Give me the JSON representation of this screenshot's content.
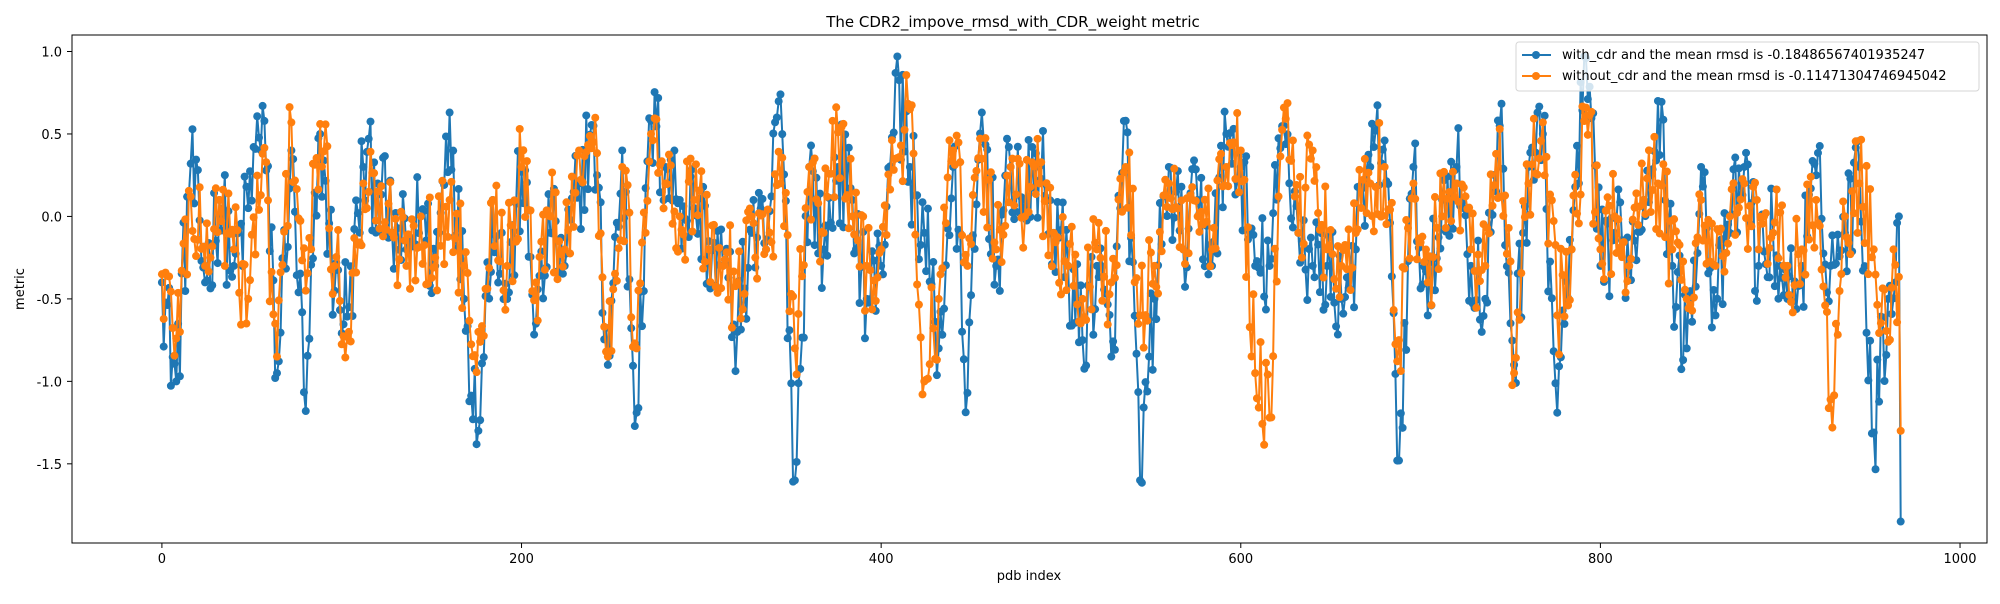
{
  "chart_data": {
    "type": "line",
    "title": "The CDR2_impove_rmsd_with_CDR_weight metric",
    "xlabel": "pdb index",
    "ylabel": "metric",
    "xlim": [
      -50,
      1015
    ],
    "ylim": [
      -1.98,
      1.1
    ],
    "x_ticks": [
      0,
      200,
      400,
      600,
      800,
      1000
    ],
    "y_ticks": [
      -1.5,
      -1.0,
      -0.5,
      0.0,
      0.5,
      1.0
    ],
    "y_tick_labels": [
      "-1.5",
      "-1.0",
      "-0.5",
      "0.0",
      "0.5",
      "1.0"
    ],
    "grid": false,
    "legend_position": "top-right",
    "n_points": 968,
    "series": [
      {
        "name": "with_cdr and the mean rmsd is -0.18486567401935247",
        "color": "#1f77b4",
        "marker": "circle",
        "values_sample_every_8": [
          -0.4,
          -1.0,
          0.32,
          -0.4,
          0.1,
          -0.3,
          0.05,
          0.67,
          -0.95,
          0.4,
          -1.18,
          0.5,
          -0.45,
          -0.55,
          0.3,
          0.2,
          -0.1,
          -0.2,
          0.0,
          -0.3,
          0.63,
          -0.5,
          -1.3,
          0.1,
          -0.5,
          0.27,
          -0.65,
          -0.1,
          -0.3,
          0.2,
          0.55,
          -0.9,
          0.4,
          -1.19,
          0.58,
          0.3,
          0.1,
          0.05,
          -0.15,
          -0.3,
          -0.7,
          -0.1,
          -0.2,
          0.74,
          -1.6,
          0.3,
          -0.2,
          0.3,
          0.1,
          -0.5,
          -0.3,
          0.87,
          0.3,
          -0.1,
          -0.8,
          0.3,
          -1.07,
          0.63,
          -0.3,
          0.3,
          0.1,
          0.3,
          -0.1,
          -0.3,
          -0.75,
          -0.3,
          -0.85,
          0.58,
          -1.6,
          -0.5,
          0.3,
          -0.2,
          0.1,
          -0.3,
          0.5,
          0.3,
          -0.3,
          -0.3,
          0.55,
          -0.1,
          -0.3,
          -0.3,
          -0.5,
          -0.2,
          0.3,
          0.46,
          -1.48,
          0.3,
          -0.6,
          0.1,
          0.3,
          -0.3,
          -0.5,
          0.55,
          -0.9,
          0.3,
          0.5,
          -1.19,
          -0.2,
          0.96,
          -0.3,
          -0.1,
          -0.3,
          0.1,
          0.7,
          -0.3,
          -0.8,
          0.3,
          -0.6,
          -0.1,
          0.3,
          -0.3,
          -0.1,
          -0.5,
          -0.3,
          0.25,
          -0.3,
          -0.1,
          0.3,
          -1.31,
          -0.5,
          -0.2,
          -0.3,
          0.2,
          -0.5,
          -0.3,
          -0.3,
          -0.1,
          -0.4,
          -0.3,
          0.35,
          -0.8,
          -0.3,
          0.35,
          -1.05,
          0.2,
          -0.3,
          -0.8,
          -0.3,
          0.25,
          -0.1,
          -0.5,
          -0.3,
          0.2,
          0.35,
          0.1,
          -0.3,
          -0.1,
          -0.5,
          0.3,
          -0.3,
          -0.1,
          0.2,
          0.43,
          -1.05,
          -0.3,
          -0.3,
          -1.53,
          0.2,
          -0.3,
          0.1,
          0.3,
          -0.3,
          -0.5,
          -0.3,
          0.2,
          -0.84,
          -0.1,
          -0.5,
          -0.3,
          0.2,
          -0.3,
          0.4,
          -1.46,
          0.53,
          -0.3,
          -0.3,
          0.3,
          -0.86,
          0.25,
          -0.3,
          -0.5,
          0.1,
          -0.3,
          -0.3,
          -0.4,
          0.2,
          0.16,
          -1.85
        ]
      },
      {
        "name": "without_cdr and the mean rmsd is -0.11471304746945042",
        "color": "#ff7f0e",
        "marker": "circle",
        "values_sample_every_8": [
          -0.35,
          -0.74,
          0.12,
          -0.3,
          0.1,
          -0.2,
          -0.5,
          0.38,
          -0.85,
          0.57,
          -0.45,
          0.56,
          -0.3,
          -0.7,
          0.2,
          0.15,
          -0.1,
          -0.3,
          0.0,
          -0.25,
          0.1,
          -0.3,
          -0.7,
          0.1,
          -0.3,
          0.3,
          -0.4,
          0.0,
          -0.2,
          0.4,
          0.45,
          -0.85,
          0.3,
          -0.8,
          0.5,
          0.2,
          0.0,
          0.1,
          -0.2,
          -0.3,
          -0.4,
          0.0,
          -0.2,
          0.2,
          -0.8,
          0.3,
          -0.1,
          0.51,
          0.0,
          -0.3,
          -0.2,
          0.35,
          0.65,
          -1.0,
          -0.5,
          0.4,
          -0.3,
          0.35,
          -0.2,
          0.3,
          0.0,
          0.2,
          -0.1,
          -0.3,
          -0.5,
          -0.2,
          -0.4,
          0.3,
          -0.6,
          -0.3,
          0.2,
          -0.2,
          0.0,
          -0.2,
          0.3,
          0.4,
          -0.95,
          -1.22,
          0.66,
          -0.1,
          0.4,
          -0.2,
          -0.3,
          -0.1,
          0.2,
          0.3,
          -0.75,
          0.2,
          -0.4,
          0.0,
          0.2,
          -0.2,
          -0.3,
          0.53,
          -0.95,
          0.2,
          0.57,
          -0.6,
          -0.2,
          0.66,
          -0.2,
          0.0,
          -0.3,
          0.1,
          0.2,
          -0.2,
          -0.5,
          0.1,
          -0.3,
          0.0,
          0.2,
          -0.2,
          -0.1,
          -0.3,
          -0.2,
          0.1,
          -1.11,
          0.0,
          0.2,
          -0.2,
          -0.76,
          -0.1,
          -0.2,
          0.1,
          -0.3,
          -0.2,
          -0.3,
          0.0,
          -0.3,
          -0.2,
          0.2,
          -0.5,
          -0.2,
          0.3,
          -0.4,
          0.2,
          0.36,
          -1.16,
          -0.2,
          0.2,
          -0.2,
          -0.3,
          0.3,
          0.0,
          -0.9,
          -0.2,
          -1.18,
          0.3,
          0.1,
          -0.3,
          0.2,
          0.38,
          -0.2,
          -0.3,
          -0.5,
          0.2,
          0.35,
          -1.04,
          -0.2,
          -0.3,
          -0.72,
          0.37,
          -0.2,
          0.1,
          0.2,
          -0.2,
          -0.3,
          -0.2,
          0.43,
          -0.73,
          0.0,
          -0.3,
          -0.2,
          0.38,
          -0.2,
          0.35,
          -0.6,
          0.3,
          -0.2,
          -0.3,
          0.2,
          -0.4,
          0.2,
          -0.2,
          -0.3,
          0.1,
          -0.2,
          -0.68,
          -0.2,
          0.18,
          0.28,
          -1.3
        ]
      }
    ]
  }
}
